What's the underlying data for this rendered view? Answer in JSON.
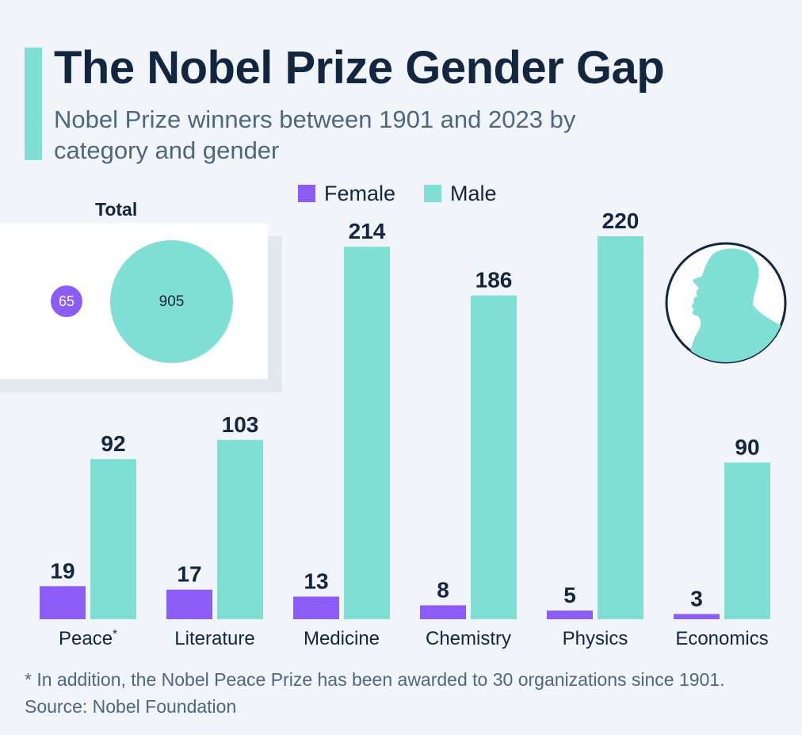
{
  "header": {
    "title": "The Nobel Prize Gender Gap",
    "subtitle": "Nobel Prize winners between 1901 and 2023 by category and gender"
  },
  "legend": {
    "female_label": "Female",
    "male_label": "Male"
  },
  "total": {
    "title": "Total",
    "female": "65",
    "male": "905"
  },
  "colors": {
    "female": "#8b5cf6",
    "male": "#7fdfd4",
    "text": "#13263f",
    "muted": "#4d6780"
  },
  "icons": {
    "medal": "nobel-medal-portrait-icon"
  },
  "footer": {
    "footnote": "* In addition, the Nobel Peace Prize has been awarded to 30 organizations since 1901.",
    "source": "Source: Nobel Foundation"
  },
  "chart_data": {
    "type": "bar",
    "categories": [
      "Peace*",
      "Literature",
      "Medicine",
      "Chemistry",
      "Physics",
      "Economics"
    ],
    "series": [
      {
        "name": "Female",
        "values": [
          19,
          17,
          13,
          8,
          5,
          3
        ]
      },
      {
        "name": "Male",
        "values": [
          92,
          103,
          214,
          186,
          220,
          90
        ]
      }
    ],
    "ylim": [
      0,
      220
    ],
    "grid": false,
    "legend_position": "top-center"
  }
}
